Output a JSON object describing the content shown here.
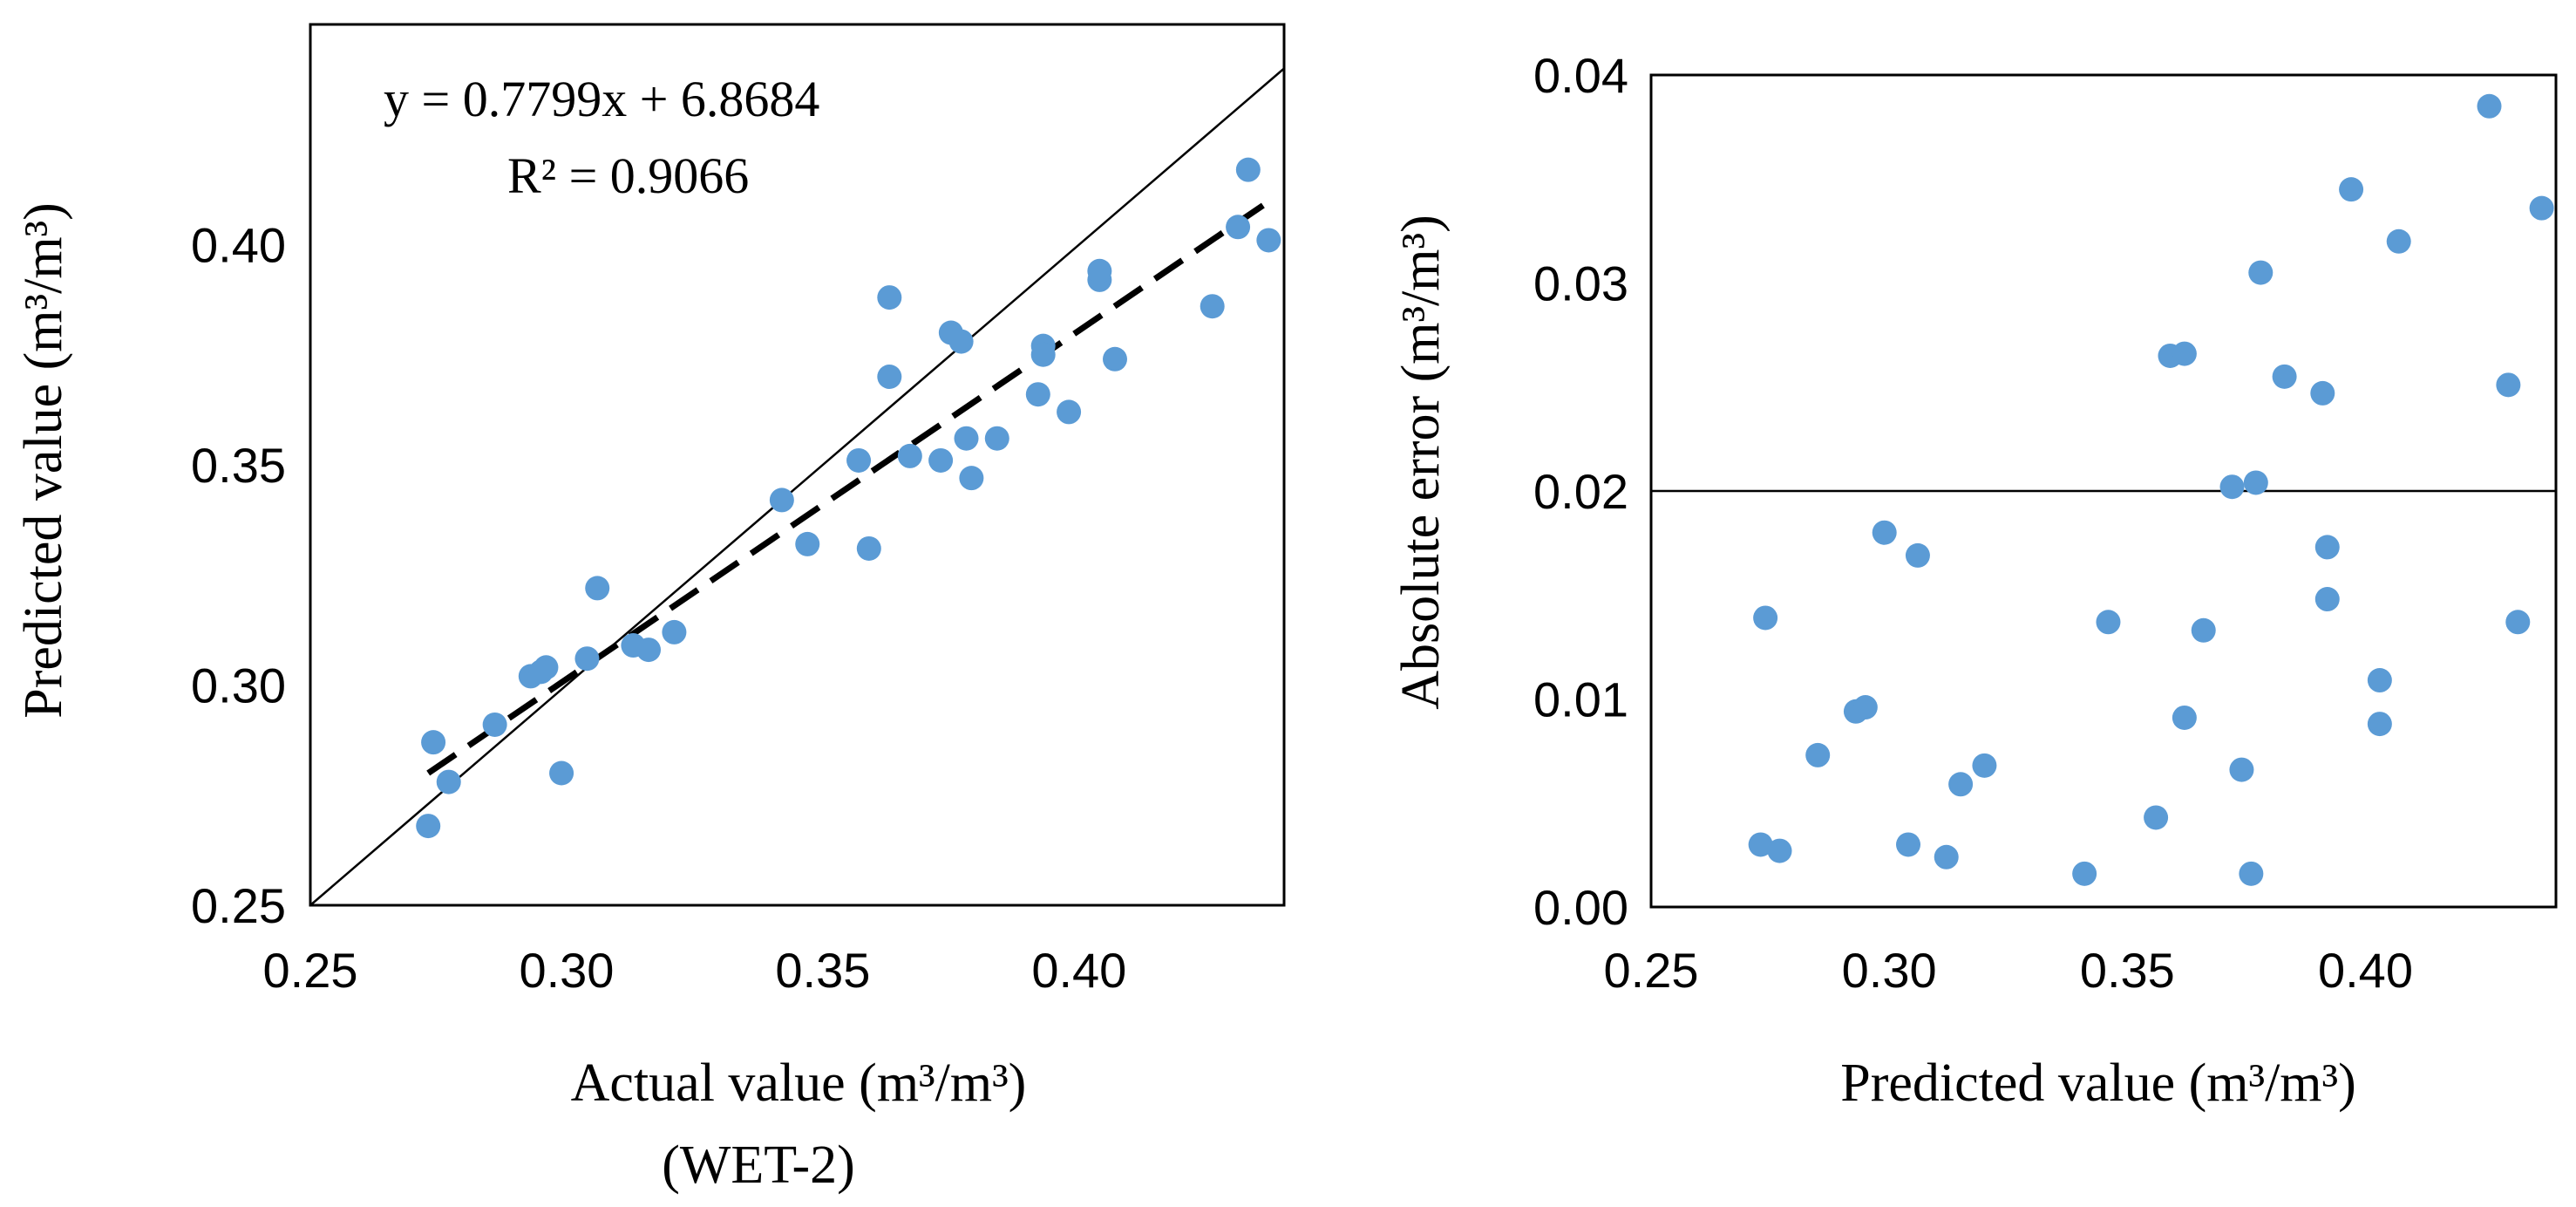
{
  "chart_data": [
    {
      "type": "scatter",
      "xlabel": "Actual value (m³/m³)",
      "xlabel_sub": "(WET-2)",
      "ylabel": "Predicted value (m³/m³)",
      "xlim": [
        0.25,
        0.44
      ],
      "ylim": [
        0.25,
        0.45
      ],
      "xticks": [
        "0.25",
        "0.30",
        "0.35",
        "0.40"
      ],
      "yticks": [
        "0.25",
        "0.30",
        "0.35",
        "0.40"
      ],
      "xtick_values": [
        0.25,
        0.3,
        0.35,
        0.4
      ],
      "ytick_values": [
        0.25,
        0.3,
        0.35,
        0.4
      ],
      "grid": false,
      "annotations": {
        "equation": "y = 0.7799x + 6.8684",
        "r_squared": "R² = 0.9066"
      },
      "reference_line": {
        "name": "1:1 line",
        "from": [
          0.25,
          0.25
        ],
        "to": [
          0.44,
          0.44
        ]
      },
      "trendline": {
        "name": "linear fit",
        "from": [
          0.273,
          0.28
        ],
        "to": [
          0.436,
          0.409
        ]
      },
      "series": [
        {
          "name": "samples",
          "x": [
            0.273,
            0.274,
            0.277,
            0.286,
            0.293,
            0.296,
            0.295,
            0.299,
            0.304,
            0.306,
            0.313,
            0.316,
            0.321,
            0.342,
            0.347,
            0.357,
            0.359,
            0.363,
            0.363,
            0.367,
            0.373,
            0.375,
            0.377,
            0.378,
            0.379,
            0.384,
            0.392,
            0.393,
            0.393,
            0.398,
            0.404,
            0.404,
            0.407,
            0.426,
            0.431,
            0.433,
            0.437
          ],
          "y": [
            0.268,
            0.287,
            0.278,
            0.291,
            0.302,
            0.304,
            0.303,
            0.28,
            0.306,
            0.322,
            0.309,
            0.308,
            0.312,
            0.342,
            0.332,
            0.351,
            0.331,
            0.37,
            0.388,
            0.352,
            0.351,
            0.38,
            0.378,
            0.356,
            0.347,
            0.356,
            0.366,
            0.377,
            0.375,
            0.362,
            0.392,
            0.394,
            0.374,
            0.386,
            0.404,
            0.417,
            0.401
          ]
        }
      ]
    },
    {
      "type": "scatter",
      "xlabel": "Predicted value (m³/m³)",
      "ylabel": "Absolute error (m³/m³)",
      "xlim": [
        0.25,
        0.44
      ],
      "ylim": [
        0.0,
        0.04
      ],
      "xticks": [
        "0.25",
        "0.30",
        "0.35",
        "0.40"
      ],
      "yticks": [
        "0.00",
        "0.01",
        "0.02",
        "0.03",
        "0.04"
      ],
      "xtick_values": [
        0.25,
        0.3,
        0.35,
        0.4
      ],
      "ytick_values": [
        0.0,
        0.01,
        0.02,
        0.03,
        0.04
      ],
      "grid": false,
      "threshold_line": {
        "y": 0.02
      },
      "series": [
        {
          "name": "samples",
          "x": [
            0.273,
            0.274,
            0.277,
            0.285,
            0.293,
            0.295,
            0.299,
            0.304,
            0.306,
            0.312,
            0.315,
            0.32,
            0.341,
            0.346,
            0.356,
            0.359,
            0.362,
            0.362,
            0.366,
            0.372,
            0.374,
            0.376,
            0.377,
            0.378,
            0.383,
            0.391,
            0.392,
            0.392,
            0.397,
            0.403,
            0.403,
            0.407,
            0.426,
            0.43,
            0.432,
            0.437
          ],
          "y": [
            0.003,
            0.0139,
            0.0027,
            0.0073,
            0.0094,
            0.0096,
            0.018,
            0.003,
            0.0169,
            0.0024,
            0.0059,
            0.0068,
            0.0016,
            0.0137,
            0.0043,
            0.0265,
            0.0266,
            0.0091,
            0.0133,
            0.0202,
            0.0066,
            0.0016,
            0.0204,
            0.0305,
            0.0255,
            0.0247,
            0.0148,
            0.0173,
            0.0345,
            0.0109,
            0.0088,
            0.032,
            0.0385,
            0.0251,
            0.0137,
            0.0336
          ]
        }
      ]
    }
  ]
}
